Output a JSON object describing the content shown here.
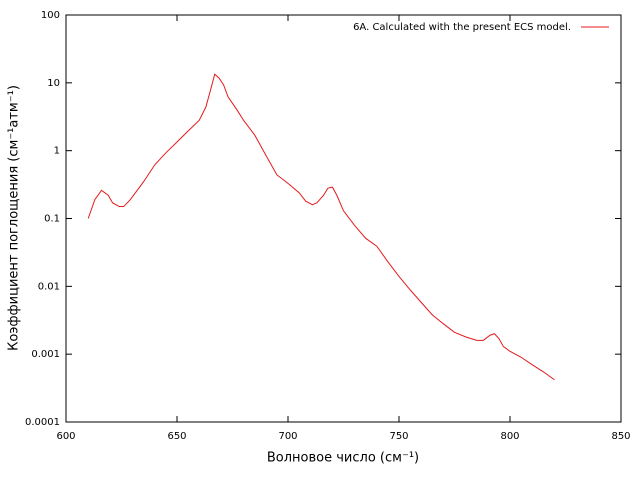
{
  "chart_data": {
    "type": "line",
    "xlabel": "Волновое число (см⁻¹)",
    "ylabel": "Коэффициент поглощения (см⁻¹атм⁻¹)",
    "x": [
      610,
      613,
      616,
      619,
      621,
      624,
      626,
      629,
      635,
      640,
      645,
      650,
      655,
      660,
      663,
      665,
      667,
      669,
      671,
      673,
      677,
      680,
      685,
      690,
      695,
      700,
      705,
      708,
      711,
      713,
      716,
      718,
      720,
      722,
      725,
      730,
      735,
      740,
      745,
      750,
      755,
      760,
      765,
      770,
      775,
      780,
      785,
      788,
      791,
      793,
      795,
      797,
      800,
      805,
      810,
      815,
      820
    ],
    "series": [
      {
        "name": "6A. Calculated with the present ECS model.",
        "color": "#e41a1c",
        "values": [
          0.1,
          0.19,
          0.26,
          0.22,
          0.17,
          0.15,
          0.15,
          0.19,
          0.35,
          0.62,
          0.93,
          1.34,
          1.95,
          2.8,
          4.4,
          7.6,
          13.4,
          11.7,
          9.3,
          6.2,
          4,
          2.8,
          1.7,
          0.86,
          0.44,
          0.33,
          0.24,
          0.18,
          0.16,
          0.17,
          0.22,
          0.28,
          0.29,
          0.22,
          0.13,
          0.079,
          0.051,
          0.039,
          0.023,
          0.014,
          0.0089,
          0.0058,
          0.0038,
          0.0028,
          0.0021,
          0.0018,
          0.0016,
          0.0016,
          0.0019,
          0.002,
          0.0017,
          0.0013,
          0.0011,
          0.0009,
          0.0007,
          0.00055,
          0.00042
        ]
      }
    ],
    "xlim": [
      600,
      850
    ],
    "xticks": [
      600,
      650,
      700,
      750,
      800,
      850
    ],
    "ylim": [
      0.0001,
      100
    ],
    "yticks": [
      0.0001,
      0.001,
      0.01,
      0.1,
      1,
      10,
      100
    ],
    "log_y": true,
    "grid": false,
    "legend_position": "top-right"
  }
}
